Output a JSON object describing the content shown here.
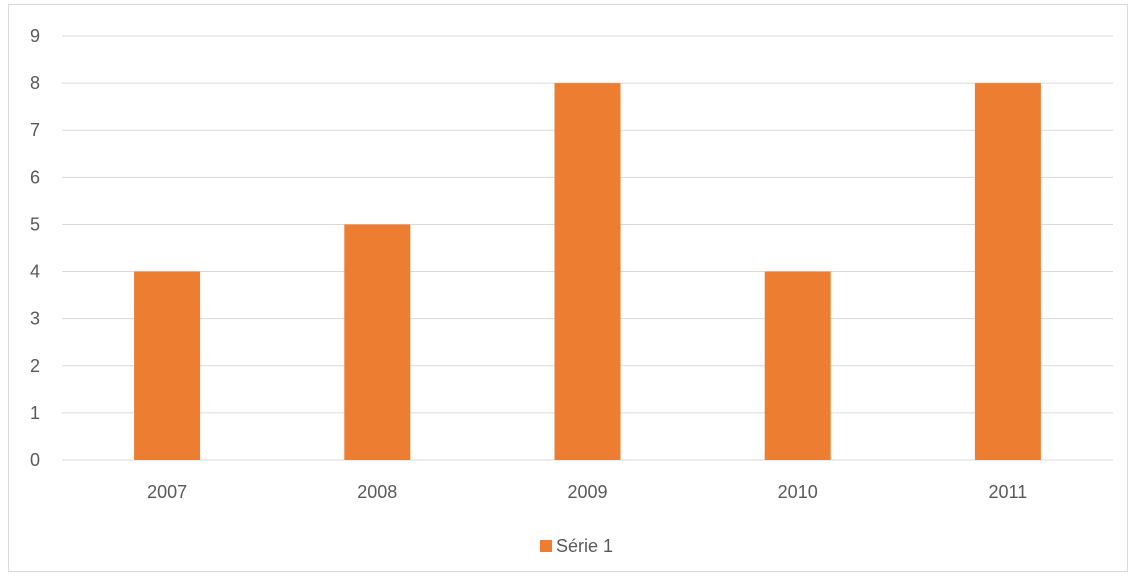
{
  "chart_data": {
    "type": "bar",
    "categories": [
      "2007",
      "2008",
      "2009",
      "2010",
      "2011"
    ],
    "series": [
      {
        "name": "Série 1",
        "values": [
          4,
          5,
          8,
          4,
          8
        ],
        "color": "#ED7D31"
      }
    ],
    "title": "",
    "xlabel": "",
    "ylabel": "",
    "ylim": [
      0,
      9
    ],
    "yticks": [
      0,
      1,
      2,
      3,
      4,
      5,
      6,
      7,
      8,
      9
    ],
    "grid": true,
    "gridColor": "#d9d9d9",
    "legend": "bottom"
  }
}
